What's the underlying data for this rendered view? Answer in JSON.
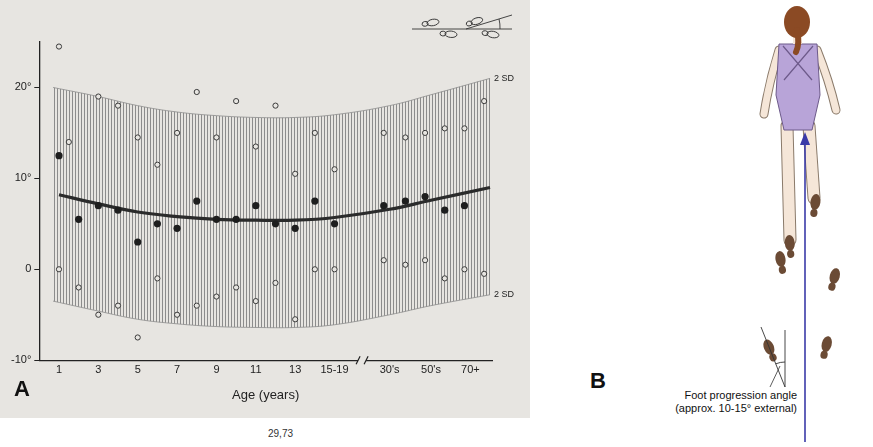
{
  "chart_data": {
    "type": "scatter",
    "x_label": "Age (years)",
    "xlim": [
      0,
      23
    ],
    "xticks": [
      1,
      3,
      5,
      7,
      9,
      11,
      13,
      {
        "value": 15,
        "label": "15-19"
      },
      {
        "value": 17.8,
        "label": "30's"
      },
      {
        "value": 19.9,
        "label": "50's"
      },
      {
        "value": 21.9,
        "label": "70+"
      }
    ],
    "ylim": [
      -10,
      25
    ],
    "yticks": [
      {
        "value": -10,
        "label": "-10°"
      },
      0,
      {
        "value": 10,
        "label": "10°"
      },
      {
        "value": 20,
        "label": "20°"
      }
    ],
    "grid": false,
    "series": [
      {
        "type": "band",
        "name": "2 SD",
        "color": "#8c8c8c",
        "x": [
          0.7,
          3,
          5,
          7,
          9,
          11,
          13,
          15,
          17.8,
          19.9,
          22.9
        ],
        "upper": [
          20,
          19,
          18,
          17.3,
          16.9,
          16.7,
          16.7,
          17,
          18,
          19.2,
          21
        ],
        "lower": [
          -3.5,
          -4.6,
          -5.5,
          -6,
          -6.3,
          -6.4,
          -6.4,
          -6.1,
          -5,
          -4,
          -2.8
        ]
      },
      {
        "type": "line",
        "color": "#2b2b2b",
        "marker": "none",
        "x": [
          1,
          3,
          5,
          7,
          9,
          11,
          13,
          15,
          17.8,
          19.9,
          22.9
        ],
        "values": [
          8.2,
          7.2,
          6.3,
          5.8,
          5.5,
          5.4,
          5.4,
          5.7,
          6.6,
          7.6,
          9
        ]
      },
      {
        "type": "scatter",
        "color": "#3a3a3a",
        "marker": "open circle",
        "x": [
          1,
          1,
          1.5,
          2,
          3,
          3,
          4,
          4,
          5,
          5,
          6,
          6,
          7,
          7,
          8,
          8,
          9,
          9,
          10,
          10,
          11,
          11,
          12,
          12,
          13,
          13,
          14,
          14,
          15,
          15,
          17.5,
          17.5,
          18.6,
          18.6,
          19.6,
          19.6,
          20.6,
          20.6,
          21.6,
          21.6,
          22.6,
          22.6
        ],
        "values": [
          0,
          24.5,
          14,
          -2,
          19,
          -5,
          18,
          -4,
          14.5,
          -7.5,
          11.5,
          -1,
          15,
          -5,
          19.5,
          -4,
          14.5,
          -3,
          18.5,
          -2,
          13.5,
          -3.5,
          18,
          -1.5,
          10.5,
          -5.5,
          15,
          0,
          11,
          0,
          15,
          1,
          14.5,
          0.5,
          15,
          1,
          15.5,
          -1,
          15.5,
          0,
          18.5,
          -0.5
        ]
      },
      {
        "type": "scatter",
        "color": "#1e1e1e",
        "marker": "filled circle",
        "x": [
          1,
          2,
          3,
          4,
          5,
          6,
          7,
          8,
          9,
          10,
          11,
          12,
          13,
          14,
          15,
          17.5,
          18.6,
          19.6,
          20.6,
          21.6
        ],
        "values": [
          12.5,
          5.5,
          7,
          6.5,
          3,
          5,
          4.5,
          7.5,
          5.5,
          5.5,
          7,
          5,
          4.5,
          7.5,
          5,
          7,
          7.5,
          8,
          6.5,
          7
        ]
      }
    ]
  },
  "panel_labels": [
    "A",
    "B"
  ],
  "diagram": {
    "annotation": [
      "Foot progression angle",
      "(approx. 10-15° external)"
    ]
  },
  "footer": "29,73"
}
